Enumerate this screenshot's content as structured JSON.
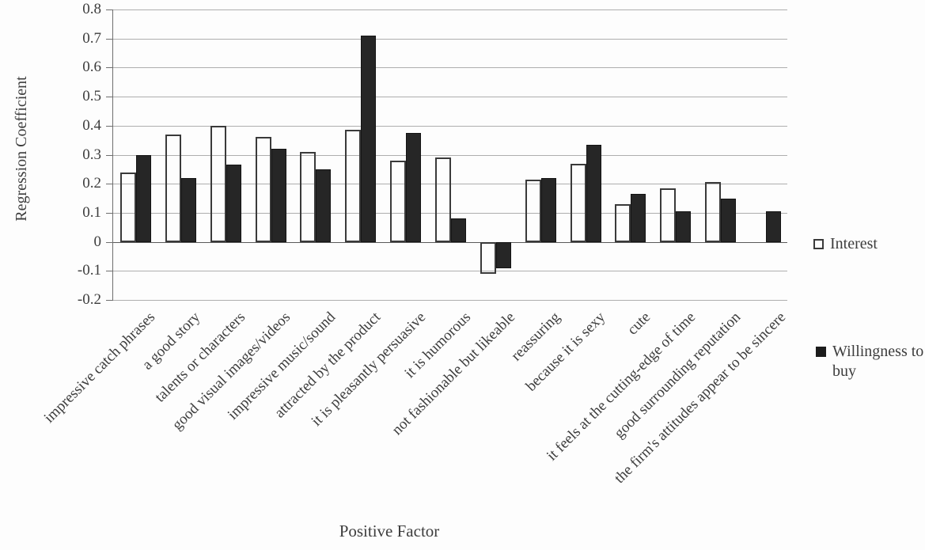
{
  "chart_data": {
    "type": "bar",
    "title": "",
    "xlabel": "Positive Factor",
    "ylabel": "Regression Coefficient",
    "ylim": [
      -0.2,
      0.8
    ],
    "ytick_step": 0.1,
    "grid": true,
    "legend_position": "right",
    "categories": [
      "impressive catch phrases",
      "a good story",
      "talents or characters",
      "good visual images/videos",
      "impressive music/sound",
      "attracted by the product",
      "it is pleasantly persuasive",
      "it is humorous",
      "not fashionable but likeable",
      "reassuring",
      "because it is sexy",
      "cute",
      "it feels at the cutting-edge of time",
      "good surrounding reputation",
      "the firm's attitudes appear to be sincere"
    ],
    "series": [
      {
        "name": "Interest",
        "style": "outline",
        "values": [
          0.24,
          0.37,
          0.4,
          0.36,
          0.31,
          0.385,
          0.28,
          0.29,
          -0.11,
          0.215,
          0.27,
          0.13,
          0.185,
          0.205,
          null
        ]
      },
      {
        "name": "Willingness to buy",
        "style": "filled",
        "values": [
          0.3,
          0.22,
          0.265,
          0.32,
          0.25,
          0.71,
          0.375,
          0.08,
          -0.09,
          0.22,
          0.335,
          0.165,
          0.105,
          0.15,
          0.105
        ]
      }
    ],
    "colors": {
      "filled_bar": "#262626",
      "outline_bar_border": "#3a3a3a",
      "gridline": "#aeaeae",
      "axis": "#6e6e6e",
      "text": "#3d3d3d",
      "background": "#fdfdfd"
    }
  }
}
